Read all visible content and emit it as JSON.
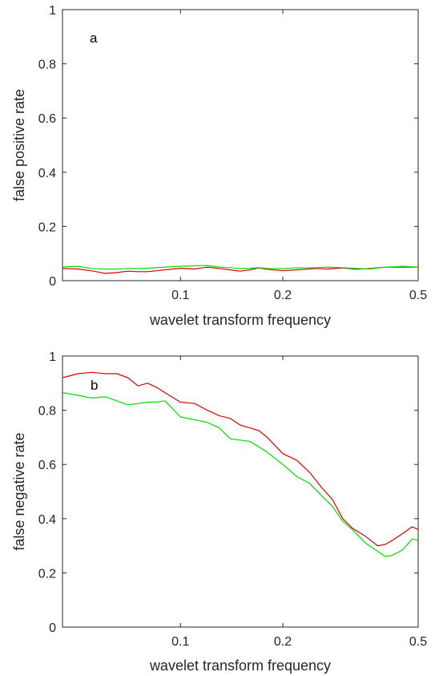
{
  "chart_data": [
    {
      "type": "line",
      "panel_label": "a",
      "xlabel": "wavelet transform frequency",
      "ylabel": "false positive rate",
      "x_scale": "log",
      "xlim": [
        0.045,
        0.5
      ],
      "ylim": [
        0,
        1
      ],
      "x_ticks": [
        0.1,
        0.2,
        0.5
      ],
      "x_tick_labels": [
        "0.1",
        "0.2",
        "0.5"
      ],
      "y_ticks": [
        0,
        0.2,
        0.4,
        0.6,
        0.8,
        1
      ],
      "y_tick_labels": [
        "0",
        "0.2",
        "0.4",
        "0.6",
        "0.8",
        "1"
      ],
      "grid": false,
      "series": [
        {
          "color": "#e00000",
          "x": [
            0.045,
            0.05,
            0.055,
            0.06,
            0.065,
            0.07,
            0.075,
            0.08,
            0.09,
            0.1,
            0.11,
            0.12,
            0.13,
            0.14,
            0.15,
            0.16,
            0.17,
            0.18,
            0.2,
            0.22,
            0.25,
            0.27,
            0.3,
            0.33,
            0.36,
            0.4,
            0.45,
            0.5
          ],
          "y": [
            0.045,
            0.043,
            0.036,
            0.027,
            0.03,
            0.035,
            0.033,
            0.033,
            0.04,
            0.046,
            0.043,
            0.05,
            0.045,
            0.04,
            0.035,
            0.04,
            0.047,
            0.042,
            0.037,
            0.04,
            0.045,
            0.043,
            0.047,
            0.042,
            0.045,
            0.05,
            0.05,
            0.05
          ]
        },
        {
          "color": "#00e000",
          "x": [
            0.045,
            0.05,
            0.055,
            0.06,
            0.065,
            0.07,
            0.075,
            0.08,
            0.09,
            0.1,
            0.11,
            0.12,
            0.13,
            0.14,
            0.15,
            0.16,
            0.17,
            0.18,
            0.2,
            0.22,
            0.25,
            0.27,
            0.3,
            0.33,
            0.36,
            0.4,
            0.45,
            0.5
          ],
          "y": [
            0.05,
            0.053,
            0.045,
            0.043,
            0.043,
            0.045,
            0.045,
            0.046,
            0.05,
            0.053,
            0.055,
            0.056,
            0.05,
            0.048,
            0.045,
            0.046,
            0.048,
            0.045,
            0.045,
            0.047,
            0.048,
            0.05,
            0.048,
            0.045,
            0.043,
            0.05,
            0.053,
            0.05
          ]
        }
      ]
    },
    {
      "type": "line",
      "panel_label": "b",
      "xlabel": "wavelet transform frequency",
      "ylabel": "false negative rate",
      "x_scale": "log",
      "xlim": [
        0.045,
        0.5
      ],
      "ylim": [
        0,
        1
      ],
      "x_ticks": [
        0.1,
        0.2,
        0.5
      ],
      "x_tick_labels": [
        "0.1",
        "0.2",
        "0.5"
      ],
      "y_ticks": [
        0,
        0.2,
        0.4,
        0.6,
        0.8,
        1
      ],
      "y_tick_labels": [
        "0",
        "0.2",
        "0.4",
        "0.6",
        "0.8",
        "1"
      ],
      "grid": false,
      "series": [
        {
          "color": "#e00000",
          "x": [
            0.045,
            0.05,
            0.055,
            0.06,
            0.065,
            0.07,
            0.075,
            0.08,
            0.085,
            0.09,
            0.1,
            0.11,
            0.12,
            0.13,
            0.14,
            0.15,
            0.16,
            0.17,
            0.18,
            0.2,
            0.22,
            0.24,
            0.26,
            0.28,
            0.3,
            0.32,
            0.35,
            0.38,
            0.4,
            0.42,
            0.45,
            0.48,
            0.5
          ],
          "y": [
            0.92,
            0.935,
            0.94,
            0.935,
            0.935,
            0.92,
            0.89,
            0.9,
            0.885,
            0.865,
            0.83,
            0.825,
            0.8,
            0.78,
            0.77,
            0.745,
            0.735,
            0.725,
            0.7,
            0.64,
            0.615,
            0.57,
            0.515,
            0.47,
            0.4,
            0.365,
            0.335,
            0.3,
            0.305,
            0.32,
            0.345,
            0.37,
            0.36
          ]
        },
        {
          "color": "#00e000",
          "x": [
            0.045,
            0.05,
            0.055,
            0.06,
            0.065,
            0.07,
            0.075,
            0.08,
            0.085,
            0.09,
            0.1,
            0.11,
            0.12,
            0.13,
            0.14,
            0.15,
            0.16,
            0.17,
            0.18,
            0.2,
            0.22,
            0.24,
            0.26,
            0.28,
            0.3,
            0.32,
            0.35,
            0.38,
            0.4,
            0.42,
            0.45,
            0.48,
            0.5
          ],
          "y": [
            0.865,
            0.855,
            0.845,
            0.85,
            0.835,
            0.82,
            0.825,
            0.83,
            0.83,
            0.835,
            0.775,
            0.765,
            0.755,
            0.735,
            0.695,
            0.69,
            0.685,
            0.665,
            0.645,
            0.6,
            0.555,
            0.53,
            0.485,
            0.445,
            0.39,
            0.36,
            0.31,
            0.28,
            0.26,
            0.265,
            0.285,
            0.325,
            0.32
          ]
        }
      ]
    }
  ]
}
